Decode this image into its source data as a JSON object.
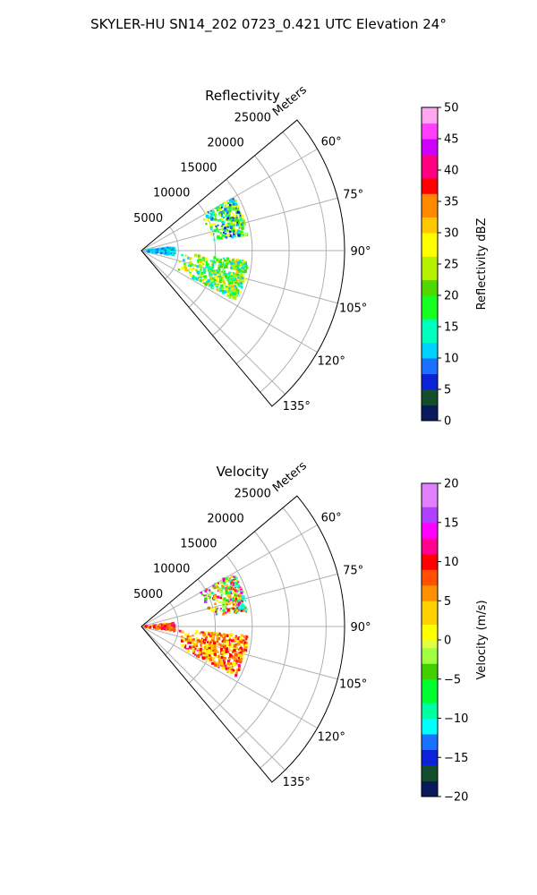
{
  "figure": {
    "suptitle": "SKYLER-HU  SN14_202  0723_0.421 UTC Elevation 24°"
  },
  "chart_data": [
    {
      "type": "polar-sector",
      "title": "Reflectivity",
      "radial_axis": {
        "label": "Meters",
        "ticks": [
          5000,
          10000,
          15000,
          20000,
          25000
        ],
        "tick_labels": [
          "5000",
          "10000",
          "15000",
          "20000",
          "25000"
        ],
        "rmax": 27500
      },
      "angular_axis": {
        "ticks": [
          60,
          75,
          90,
          105,
          120,
          135
        ],
        "tick_labels": [
          "60°",
          "75°",
          "90°",
          "105°",
          "120°",
          "135°"
        ],
        "range_deg": [
          50,
          140
        ]
      },
      "colorbar": {
        "label": "Reflectivity dBZ",
        "range": [
          0,
          50
        ],
        "ticks": [
          0,
          5,
          10,
          15,
          20,
          25,
          30,
          35,
          40,
          45,
          50
        ],
        "tick_labels": [
          "0",
          "5",
          "10",
          "15",
          "20",
          "25",
          "30",
          "35",
          "40",
          "45",
          "50"
        ]
      },
      "echo_regions": [
        {
          "az": [
            60,
            82
          ],
          "r": [
            9000,
            14500
          ],
          "value_range": [
            5,
            30
          ]
        },
        {
          "az": [
            95,
            118
          ],
          "r": [
            5000,
            14500
          ],
          "value_range": [
            10,
            32
          ]
        },
        {
          "az": [
            84,
            98
          ],
          "r": [
            0,
            4500
          ],
          "value_range": [
            8,
            16
          ]
        }
      ]
    },
    {
      "type": "polar-sector",
      "title": "Velocity",
      "radial_axis": {
        "label": "Meters",
        "ticks": [
          5000,
          10000,
          15000,
          20000,
          25000
        ],
        "tick_labels": [
          "5000",
          "10000",
          "15000",
          "20000",
          "25000"
        ],
        "rmax": 27500
      },
      "angular_axis": {
        "ticks": [
          60,
          75,
          90,
          105,
          120,
          135
        ],
        "tick_labels": [
          "60°",
          "75°",
          "90°",
          "105°",
          "120°",
          "135°"
        ],
        "range_deg": [
          50,
          140
        ]
      },
      "colorbar": {
        "label": "Velocity (m/s)",
        "range": [
          -20,
          20
        ],
        "ticks": [
          -20,
          -15,
          -10,
          -5,
          0,
          5,
          10,
          15,
          20
        ],
        "tick_labels": [
          "−20",
          "−15",
          "−10",
          "−5",
          "0",
          "5",
          "10",
          "15",
          "20"
        ]
      },
      "echo_regions": [
        {
          "az": [
            60,
            82
          ],
          "r": [
            9000,
            14500
          ],
          "value_range": [
            -12,
            16
          ]
        },
        {
          "az": [
            95,
            118
          ],
          "r": [
            5000,
            14500
          ],
          "value_range": [
            0,
            12
          ]
        },
        {
          "az": [
            84,
            98
          ],
          "r": [
            0,
            4500
          ],
          "value_range": [
            4,
            12
          ]
        }
      ]
    }
  ]
}
